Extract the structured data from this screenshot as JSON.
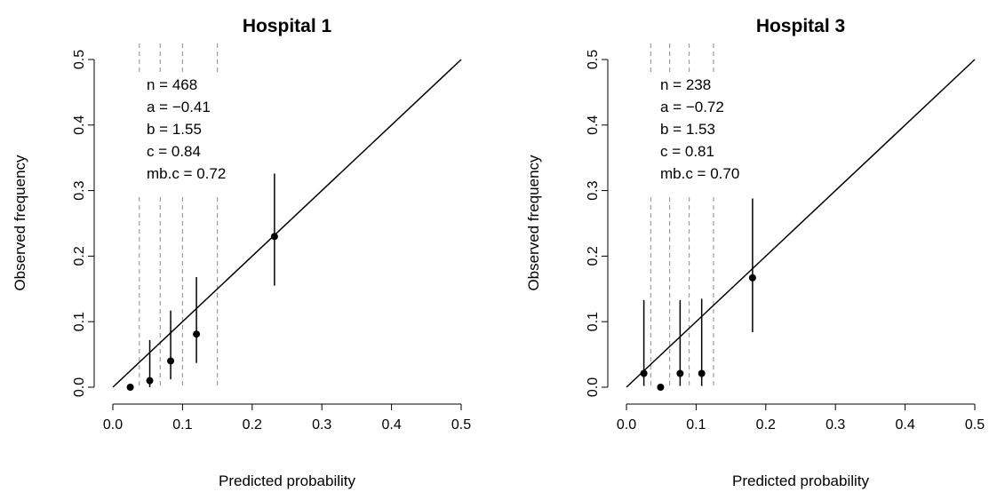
{
  "chart_data": [
    {
      "type": "scatter",
      "title": "Hospital 1",
      "xlabel": "Predicted probability",
      "ylabel": "Observed frequency",
      "xlim": [
        0,
        0.5
      ],
      "ylim": [
        0,
        0.5
      ],
      "x_ticks": [
        "0.0",
        "0.1",
        "0.2",
        "0.3",
        "0.4",
        "0.5"
      ],
      "y_ticks": [
        "0.0",
        "0.1",
        "0.2",
        "0.3",
        "0.4",
        "0.5"
      ],
      "diagonal_reference_line": true,
      "stats": [
        "n = 468",
        "a = −0.41",
        "b = 1.55",
        "c = 0.84",
        "mb.c = 0.72"
      ],
      "group_cutpoints": [
        0.038,
        0.068,
        0.1,
        0.15
      ],
      "points": [
        {
          "x": 0.025,
          "y": 0.0,
          "lower": null,
          "upper": null
        },
        {
          "x": 0.053,
          "y": 0.01,
          "lower": 0.0,
          "upper": 0.072
        },
        {
          "x": 0.083,
          "y": 0.04,
          "lower": 0.012,
          "upper": 0.117
        },
        {
          "x": 0.12,
          "y": 0.081,
          "lower": 0.037,
          "upper": 0.168
        },
        {
          "x": 0.232,
          "y": 0.23,
          "lower": 0.155,
          "upper": 0.326
        }
      ]
    },
    {
      "type": "scatter",
      "title": "Hospital 3",
      "xlabel": "Predicted probability",
      "ylabel": "Observed frequency",
      "xlim": [
        0,
        0.5
      ],
      "ylim": [
        0,
        0.5
      ],
      "x_ticks": [
        "0.0",
        "0.1",
        "0.2",
        "0.3",
        "0.4",
        "0.5"
      ],
      "y_ticks": [
        "0.0",
        "0.1",
        "0.2",
        "0.3",
        "0.4",
        "0.5"
      ],
      "diagonal_reference_line": true,
      "stats": [
        "n = 238",
        "a = −0.72",
        "b = 1.53",
        "c = 0.81",
        "mb.c = 0.70"
      ],
      "group_cutpoints": [
        0.035,
        0.062,
        0.09,
        0.125
      ],
      "points": [
        {
          "x": 0.025,
          "y": 0.021,
          "lower": 0.002,
          "upper": 0.133
        },
        {
          "x": 0.049,
          "y": 0.0,
          "lower": null,
          "upper": null
        },
        {
          "x": 0.077,
          "y": 0.021,
          "lower": 0.002,
          "upper": 0.133
        },
        {
          "x": 0.108,
          "y": 0.021,
          "lower": 0.002,
          "upper": 0.135
        },
        {
          "x": 0.181,
          "y": 0.167,
          "lower": 0.084,
          "upper": 0.288
        }
      ]
    }
  ]
}
